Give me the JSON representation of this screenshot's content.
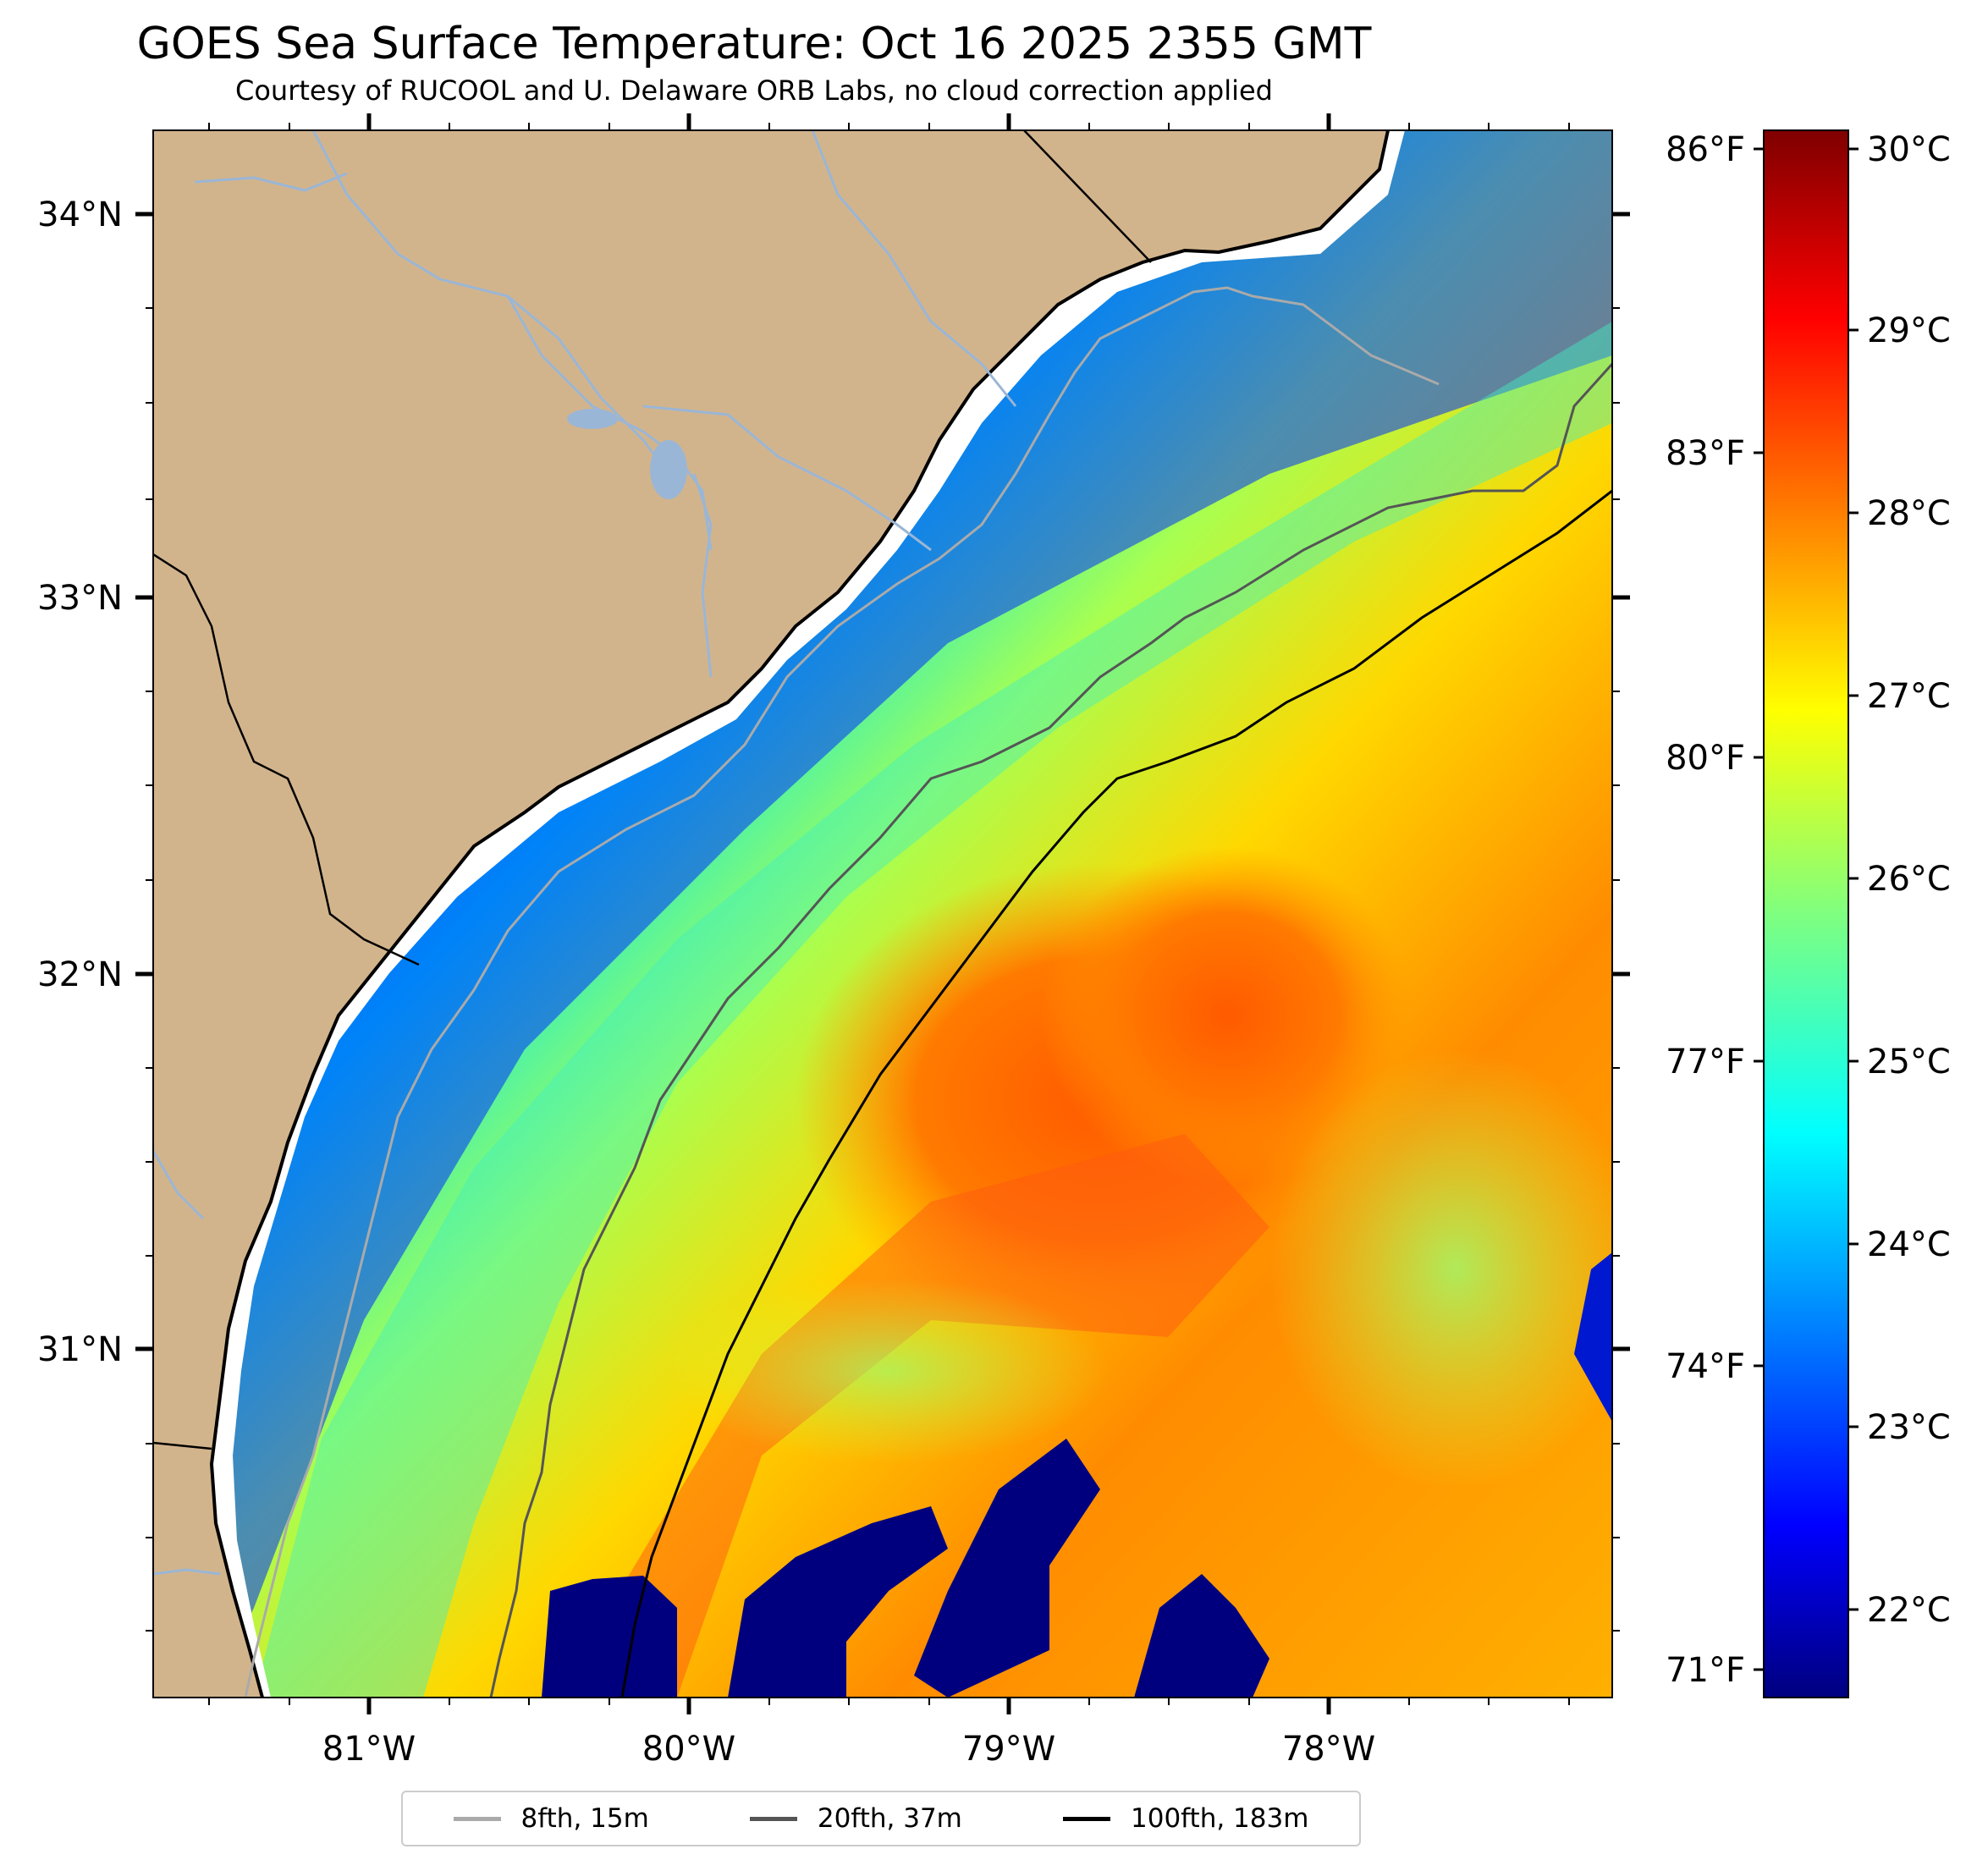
{
  "title": "GOES Sea Surface Temperature: Oct 16 2025 2355 GMT",
  "subtitle": "Courtesy of RUCOOL and U. Delaware ORB Labs, no cloud correction applied",
  "lat_labels": [
    "34°N",
    "33°N",
    "32°N",
    "31°N"
  ],
  "lon_labels": [
    "81°W",
    "80°W",
    "79°W",
    "78°W"
  ],
  "fahrenheit_labels": [
    "86°F",
    "83°F",
    "80°F",
    "77°F",
    "74°F",
    "71°F"
  ],
  "colorbar": {
    "labels": [
      "30°C",
      "29°C",
      "28°C",
      "27°C",
      "26°C",
      "25°C",
      "24°C",
      "23°C",
      "22°C"
    ],
    "colormap": "jet",
    "range_c": [
      21.5,
      30.2
    ]
  },
  "legend": {
    "items": [
      {
        "label": "8fth, 15m",
        "color": "#aaaaaa"
      },
      {
        "label": "20fth, 37m",
        "color": "#555555"
      },
      {
        "label": "100fth, 183m",
        "color": "#000000"
      }
    ]
  },
  "colors": {
    "land": "#d2b48c",
    "rivers": "#9ab6d6",
    "cloud_mask": "#00007f",
    "coastline": "#000000"
  }
}
